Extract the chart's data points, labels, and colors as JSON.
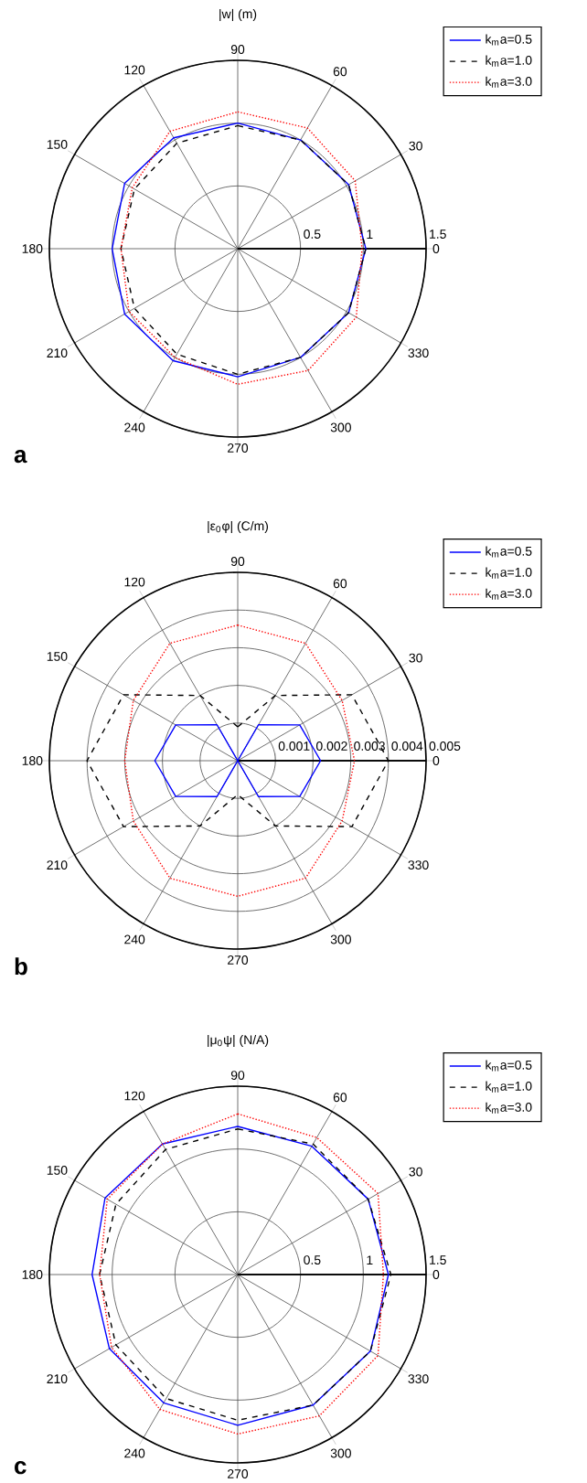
{
  "chart_data": [
    {
      "type": "radar",
      "title": "|w| (m)",
      "categories": [
        "90",
        "60",
        "30",
        "0",
        "330",
        "300",
        "270",
        "240",
        "210",
        "180",
        "150",
        "120"
      ],
      "ylim": [
        0,
        1.5
      ],
      "yticks": [
        0.5,
        1,
        1.5
      ],
      "grid": true,
      "legend": "top right",
      "annotations": [
        "a"
      ],
      "series": [
        {
          "name": "k$_{m}$a=0.5",
          "color": "#0000ff",
          "line_style": "solid",
          "values": [
            1.0,
            1.0,
            1.02,
            1.02,
            1.02,
            1.0,
            1.02,
            1.03,
            1.04,
            1.0,
            1.04,
            1.02
          ]
        },
        {
          "name": "k$_{m}$a=1.0",
          "color": "#000000",
          "line_style": "dashed",
          "values": [
            0.98,
            1.0,
            1.02,
            1.02,
            1.02,
            1.0,
            1.0,
            0.97,
            0.95,
            0.93,
            0.95,
            0.97
          ]
        },
        {
          "name": "k$_{m}$a=3.0",
          "color": "#ff0000",
          "line_style": "dotted",
          "values": [
            1.09,
            1.11,
            1.08,
            0.99,
            1.09,
            1.12,
            1.08,
            1.0,
            1.0,
            0.93,
            0.97,
            1.08
          ]
        }
      ]
    },
    {
      "type": "radar",
      "title": "|ε$_{0}$φ| (C/m)",
      "categories": [
        "90",
        "60",
        "30",
        "0",
        "330",
        "300",
        "270",
        "240",
        "210",
        "180",
        "150",
        "120"
      ],
      "ylim": [
        0,
        0.005
      ],
      "yticks": [
        0.001,
        0.002,
        0.003,
        0.004,
        0.005
      ],
      "grid": true,
      "legend": "top right",
      "annotations": [
        "b"
      ],
      "series": [
        {
          "name": "k$_{m}$a=0.5",
          "color": "#0000ff",
          "line_style": "solid",
          "values": [
            0,
            0.0011,
            0.0019,
            0.0022,
            0.0019,
            0.0011,
            0,
            0.0011,
            0.0019,
            0.0022,
            0.0019,
            0.0011
          ]
        },
        {
          "name": "k$_{m}$a=1.0",
          "color": "#000000",
          "line_style": "dashed",
          "values": [
            0.0009,
            0.002,
            0.0035,
            0.004,
            0.0035,
            0.002,
            0.0009,
            0.002,
            0.0035,
            0.004,
            0.0035,
            0.002
          ]
        },
        {
          "name": "k$_{m}$a=3.0",
          "color": "#ff0000",
          "line_style": "dotted",
          "values": [
            0.0036,
            0.0036,
            0.0032,
            0.0031,
            0.0032,
            0.0036,
            0.0036,
            0.0036,
            0.0032,
            0.003,
            0.0032,
            0.0036
          ]
        }
      ]
    },
    {
      "type": "radar",
      "title": "|μ$_{0}$ψ| (N/A)",
      "categories": [
        "90",
        "60",
        "30",
        "0",
        "330",
        "300",
        "270",
        "240",
        "210",
        "180",
        "150",
        "120"
      ],
      "ylim": [
        0,
        1.5
      ],
      "yticks": [
        0.5,
        1,
        1.5
      ],
      "grid": true,
      "legend": "top right",
      "annotations": [
        "c"
      ],
      "series": [
        {
          "name": "k$_{m}$a=0.5",
          "color": "#0000ff",
          "line_style": "solid",
          "values": [
            1.18,
            1.18,
            1.2,
            1.2,
            1.22,
            1.2,
            1.2,
            1.18,
            1.18,
            1.16,
            1.22,
            1.2
          ]
        },
        {
          "name": "k$_{m}$a=1.0",
          "color": "#000000",
          "line_style": "dashed",
          "values": [
            1.16,
            1.2,
            1.2,
            1.22,
            1.22,
            1.2,
            1.16,
            1.14,
            1.12,
            1.1,
            1.12,
            1.15
          ]
        },
        {
          "name": "k$_{m}$a=3.0",
          "color": "#ff0000",
          "line_style": "dotted",
          "values": [
            1.28,
            1.26,
            1.29,
            1.16,
            1.29,
            1.3,
            1.27,
            1.24,
            1.16,
            1.1,
            1.2,
            1.2
          ]
        }
      ]
    }
  ]
}
